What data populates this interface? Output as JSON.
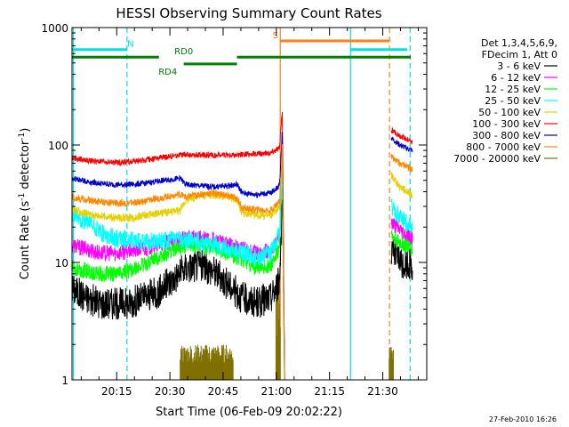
{
  "chart_data": {
    "type": "line",
    "title": "HESSI Observing Summary Count Rates",
    "xlabel": "Start Time (06-Feb-09 20:02:22)",
    "ylabel_main": "Count Rate (s",
    "ylabel_sup1": "-1",
    "ylabel_mid": " detector",
    "ylabel_sup2": "-1",
    "ylabel_end": ")",
    "y_scale": "log",
    "ylim": [
      1,
      1000
    ],
    "xlim_minutes": [
      0,
      100
    ],
    "x_ticks": [
      {
        "label": "20:15",
        "minute": 12.6
      },
      {
        "label": "20:30",
        "minute": 27.6
      },
      {
        "label": "20:45",
        "minute": 42.6
      },
      {
        "label": "21:00",
        "minute": 57.6
      },
      {
        "label": "21:15",
        "minute": 72.6
      },
      {
        "label": "21:30",
        "minute": 87.6
      }
    ],
    "y_ticks": [
      {
        "label": "1",
        "value": 1
      },
      {
        "label": "10",
        "value": 10
      },
      {
        "label": "100",
        "value": 100
      },
      {
        "label": "1000",
        "value": 1000
      }
    ],
    "legend_position": "right",
    "legend_header": [
      "Det 1,3,4,5,6,9,",
      "FDecim 1, Att 0"
    ],
    "series": [
      {
        "name": "3 - 6 keV",
        "color": "#000000",
        "x": [
          0,
          4,
          8,
          12,
          16,
          20,
          24,
          28,
          32,
          36,
          40,
          44,
          48,
          52,
          56,
          58.5,
          59.3,
          60
        ],
        "y": [
          6,
          5,
          4.5,
          4.5,
          4.5,
          5,
          5.5,
          7,
          9,
          9.5,
          8.5,
          6.5,
          5,
          4.5,
          5,
          7,
          40,
          0
        ],
        "x2": [
          90,
          91,
          92,
          93,
          94,
          95,
          96
        ],
        "y2": [
          12,
          11,
          11,
          10,
          10,
          10,
          9.5
        ]
      },
      {
        "name": "6 - 12 keV",
        "color": "#ff00ff",
        "x": [
          0,
          4,
          8,
          12,
          16,
          20,
          24,
          28,
          32,
          36,
          40,
          44,
          48,
          52,
          56,
          58.5,
          59.3,
          60
        ],
        "y": [
          14,
          13,
          12,
          12,
          12.5,
          13,
          14,
          15,
          16,
          16,
          15.5,
          14,
          13,
          12,
          12.5,
          16,
          70,
          0
        ],
        "x2": [
          90,
          91,
          92,
          93,
          94,
          95,
          96
        ],
        "y2": [
          22,
          20,
          19,
          18,
          17,
          16.5,
          16
        ]
      },
      {
        "name": "12 - 25 keV",
        "color": "#00ff00",
        "x": [
          0,
          4,
          8,
          12,
          16,
          20,
          24,
          28,
          32,
          36,
          40,
          44,
          48,
          52,
          56,
          58.5,
          59.3,
          60
        ],
        "y": [
          9,
          8.5,
          8,
          8,
          8.5,
          9.5,
          11,
          12.5,
          14,
          14,
          13.5,
          12,
          10.5,
          9,
          9.5,
          13,
          60,
          0
        ],
        "x2": [
          90,
          91,
          92,
          93,
          94,
          95,
          96
        ],
        "y2": [
          17,
          16,
          15,
          14.5,
          14,
          13.5,
          13
        ]
      },
      {
        "name": "25 - 50 keV",
        "color": "#00ffff",
        "x": [
          0,
          4,
          8,
          12,
          16,
          20,
          24,
          28,
          32,
          36,
          40,
          44,
          48,
          52,
          56,
          58.5,
          59.3,
          60
        ],
        "y": [
          25,
          22,
          18,
          16,
          15.5,
          15,
          15,
          15.5,
          15.5,
          15,
          14.5,
          13,
          12,
          11,
          12,
          18,
          60,
          0
        ],
        "x2": [
          90,
          91,
          92,
          93,
          94,
          95,
          96
        ],
        "y2": [
          30,
          27,
          25,
          23,
          22,
          21,
          20
        ]
      },
      {
        "name": "50 - 100 keV",
        "color": "#e5d000",
        "x": [
          0,
          4,
          8,
          12,
          16,
          20,
          24,
          28,
          30.5,
          32,
          36,
          40,
          44,
          46.5,
          48,
          52,
          56,
          58.5,
          59.3,
          60
        ],
        "y": [
          28,
          26,
          25,
          24,
          24,
          25,
          26,
          27,
          28,
          34,
          37,
          38,
          36,
          34,
          26,
          25,
          25,
          30,
          80,
          0
        ],
        "x2": [
          90,
          91,
          92,
          93,
          94,
          95,
          96
        ],
        "y2": [
          55,
          50,
          46,
          43,
          41,
          39,
          38
        ]
      },
      {
        "name": "100 - 300 keV",
        "color": "#ff0000",
        "x": [
          0,
          4,
          8,
          12,
          16,
          20,
          24,
          28,
          30.5,
          32,
          36,
          40,
          44,
          46.5,
          48,
          52,
          56,
          58.5,
          59.3,
          60
        ],
        "y": [
          78,
          74,
          72,
          71,
          72,
          74,
          77,
          80,
          82,
          82,
          82,
          82,
          82,
          82,
          83,
          84,
          86,
          95,
          200,
          0
        ],
        "x2": [
          90,
          91,
          92,
          93,
          94,
          95,
          96
        ],
        "y2": [
          135,
          128,
          122,
          118,
          114,
          110,
          106
        ]
      },
      {
        "name": "300 - 800 keV",
        "color": "#0000cc",
        "x": [
          0,
          4,
          8,
          12,
          16,
          20,
          24,
          28,
          30.5,
          32,
          36,
          40,
          44,
          46.5,
          48,
          52,
          56,
          58.5,
          59.3,
          60
        ],
        "y": [
          52,
          49,
          47,
          46,
          46,
          47,
          49,
          51,
          52,
          46,
          45,
          44,
          45,
          46,
          39,
          38,
          39,
          45,
          140,
          0
        ],
        "x2": [
          90,
          91,
          92,
          93,
          94,
          95,
          96
        ],
        "y2": [
          115,
          108,
          102,
          98,
          95,
          92,
          90
        ]
      },
      {
        "name": "800 - 7000 keV",
        "color": "#ff8800",
        "x": [
          0,
          4,
          8,
          12,
          16,
          20,
          24,
          28,
          30.5,
          32,
          36,
          40,
          44,
          46.5,
          48,
          52,
          56,
          58.5,
          59.3,
          60
        ],
        "y": [
          36,
          34,
          33,
          32,
          32,
          33,
          35,
          37,
          38,
          36,
          38,
          39,
          37,
          35,
          29,
          28,
          28,
          33,
          100,
          0
        ],
        "x2": [
          90,
          91,
          92,
          93,
          94,
          95,
          96
        ],
        "y2": [
          80,
          75,
          71,
          68,
          66,
          64,
          62
        ]
      },
      {
        "name": "7000 - 20000 keV",
        "color": "#807000",
        "x": [],
        "y": []
      }
    ],
    "flags": [
      {
        "label": "N",
        "color": "#00e0e0",
        "y_value": 650,
        "x_start": 0,
        "x_end": 15.5,
        "label_at": 16.5
      },
      {
        "label": "",
        "color": "#00e0e0",
        "y_value": 650,
        "x_start": 78.5,
        "x_end": 94.5,
        "label_at": null
      },
      {
        "label": "S",
        "color": "#ff7f1a",
        "y_value": 770,
        "x_start": 58.7,
        "x_end": 89.5,
        "label_at": 57.3
      },
      {
        "label": "RD0",
        "color": "#008000",
        "y_value": 560,
        "x_start": 0,
        "x_end": 24.5,
        "label_at": 31.5
      },
      {
        "label": "RD0",
        "color": "#008000",
        "y_value": 560,
        "x_start": 46.5,
        "x_end": 95.5,
        "label_at": null
      },
      {
        "label": "RD4",
        "color": "#008000",
        "y_value": 490,
        "x_start": 31.5,
        "x_end": 46.5,
        "label_at": 27.0
      }
    ],
    "vertical_markers": [
      {
        "minute": 0.4,
        "color": "#00e0e0",
        "style": "solid"
      },
      {
        "minute": 15.5,
        "color": "#00e0e0",
        "style": "dashed"
      },
      {
        "minute": 58.7,
        "color": "#ff7f1a",
        "style": "solid"
      },
      {
        "minute": 78.5,
        "color": "#00e0e0",
        "style": "solid"
      },
      {
        "minute": 89.5,
        "color": "#ff7f1a",
        "style": "dashed"
      },
      {
        "minute": 95.3,
        "color": "#00e0e0",
        "style": "dashed"
      }
    ],
    "attenuator_bursts": [
      {
        "x_start": 30.5,
        "x_end": 45.5,
        "y_top": 2.0
      },
      {
        "x_start": 57.5,
        "x_end": 58.8,
        "y_top": 6.0
      },
      {
        "x_start": 89.4,
        "x_end": 90.6,
        "y_top": 2.0
      }
    ]
  },
  "footer_timestamp": "27-Feb-2010 16:26"
}
